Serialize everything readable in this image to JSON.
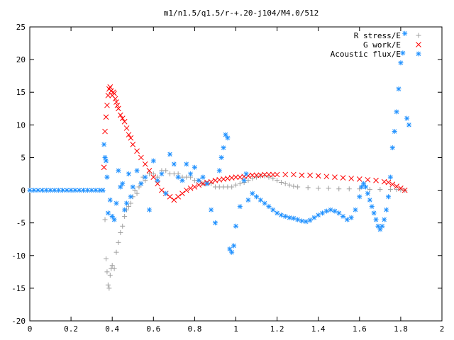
{
  "chart_data": {
    "type": "scatter",
    "title": "m1/n1.5/q1.5/r-+.20-j104/M4.0/512",
    "xlabel": "",
    "ylabel": "",
    "xlim": [
      0,
      2
    ],
    "ylim": [
      -20,
      25
    ],
    "xticks": [
      "0",
      "0.2",
      "0.4",
      "0.6",
      "0.8",
      "1",
      "1.2",
      "1.4",
      "1.6",
      "1.8",
      "2"
    ],
    "yticks": [
      "25",
      "20",
      "15",
      "10",
      "5",
      "0",
      "-5",
      "-10",
      "-15",
      "-20"
    ],
    "grid": false,
    "legend_position": "top-right",
    "series": [
      {
        "name": "R stress/E",
        "color": "#a0a0a0",
        "marker": "plus",
        "points": [
          [
            0.365,
            -4.5
          ],
          [
            0.37,
            -10.5
          ],
          [
            0.375,
            -12.5
          ],
          [
            0.38,
            -14.5
          ],
          [
            0.385,
            -15.0
          ],
          [
            0.39,
            -13.0
          ],
          [
            0.395,
            -12.0
          ],
          [
            0.4,
            -11.5
          ],
          [
            0.41,
            -12.0
          ],
          [
            0.42,
            -9.5
          ],
          [
            0.43,
            -8.0
          ],
          [
            0.44,
            -6.5
          ],
          [
            0.45,
            -5.5
          ],
          [
            0.46,
            -4.0
          ],
          [
            0.47,
            -3.0
          ],
          [
            0.48,
            -2.5
          ],
          [
            0.49,
            -2.0
          ],
          [
            0.5,
            -1.0
          ],
          [
            0.51,
            0.0
          ],
          [
            0.52,
            -0.5
          ],
          [
            0.53,
            0.5
          ],
          [
            0.54,
            1.0
          ],
          [
            0.55,
            2.0
          ],
          [
            0.56,
            1.5
          ],
          [
            0.58,
            2.5
          ],
          [
            0.6,
            2.5
          ],
          [
            0.62,
            2.0
          ],
          [
            0.64,
            3.0
          ],
          [
            0.66,
            3.0
          ],
          [
            0.68,
            2.5
          ],
          [
            0.7,
            2.5
          ],
          [
            0.72,
            2.5
          ],
          [
            0.74,
            2.0
          ],
          [
            0.76,
            2.0
          ],
          [
            0.78,
            2.0
          ],
          [
            0.8,
            1.5
          ],
          [
            0.82,
            1.5
          ],
          [
            0.84,
            1.0
          ],
          [
            0.86,
            1.0
          ],
          [
            0.88,
            1.0
          ],
          [
            0.9,
            0.5
          ],
          [
            0.92,
            0.5
          ],
          [
            0.94,
            0.5
          ],
          [
            0.96,
            0.5
          ],
          [
            0.98,
            0.5
          ],
          [
            1.0,
            0.8
          ],
          [
            1.02,
            1.0
          ],
          [
            1.04,
            1.2
          ],
          [
            1.06,
            1.5
          ],
          [
            1.08,
            1.8
          ],
          [
            1.1,
            2.0
          ],
          [
            1.12,
            2.2
          ],
          [
            1.14,
            2.2
          ],
          [
            1.16,
            2.0
          ],
          [
            1.18,
            1.8
          ],
          [
            1.2,
            1.5
          ],
          [
            1.22,
            1.2
          ],
          [
            1.24,
            1.0
          ],
          [
            1.26,
            0.8
          ],
          [
            1.28,
            0.6
          ],
          [
            1.3,
            0.5
          ],
          [
            1.35,
            0.4
          ],
          [
            1.4,
            0.3
          ],
          [
            1.45,
            0.3
          ],
          [
            1.5,
            0.2
          ],
          [
            1.55,
            0.2
          ],
          [
            1.6,
            0.2
          ],
          [
            1.65,
            0.1
          ],
          [
            1.7,
            0.1
          ],
          [
            1.75,
            0.1
          ],
          [
            1.78,
            0.1
          ],
          [
            1.8,
            0.05
          ],
          [
            1.82,
            0.0
          ]
        ]
      },
      {
        "name": "G work/E",
        "color": "#ff0000",
        "marker": "cross",
        "points": [
          [
            0.36,
            3.5
          ],
          [
            0.365,
            9.0
          ],
          [
            0.37,
            11.2
          ],
          [
            0.375,
            13.0
          ],
          [
            0.38,
            14.5
          ],
          [
            0.385,
            15.5
          ],
          [
            0.39,
            15.8
          ],
          [
            0.395,
            15.2
          ],
          [
            0.4,
            14.5
          ],
          [
            0.405,
            15.0
          ],
          [
            0.41,
            14.8
          ],
          [
            0.415,
            14.0
          ],
          [
            0.42,
            13.5
          ],
          [
            0.425,
            13.0
          ],
          [
            0.43,
            12.5
          ],
          [
            0.44,
            11.5
          ],
          [
            0.45,
            11.0
          ],
          [
            0.46,
            10.5
          ],
          [
            0.47,
            9.5
          ],
          [
            0.48,
            8.5
          ],
          [
            0.49,
            8.0
          ],
          [
            0.5,
            7.0
          ],
          [
            0.52,
            6.0
          ],
          [
            0.54,
            5.0
          ],
          [
            0.56,
            4.0
          ],
          [
            0.58,
            3.0
          ],
          [
            0.6,
            2.0
          ],
          [
            0.62,
            1.0
          ],
          [
            0.64,
            0.0
          ],
          [
            0.66,
            -0.5
          ],
          [
            0.68,
            -1.0
          ],
          [
            0.7,
            -1.5
          ],
          [
            0.72,
            -1.0
          ],
          [
            0.74,
            -0.5
          ],
          [
            0.76,
            0.0
          ],
          [
            0.78,
            0.3
          ],
          [
            0.8,
            0.5
          ],
          [
            0.82,
            0.8
          ],
          [
            0.84,
            1.0
          ],
          [
            0.86,
            1.2
          ],
          [
            0.88,
            1.3
          ],
          [
            0.9,
            1.5
          ],
          [
            0.92,
            1.6
          ],
          [
            0.94,
            1.7
          ],
          [
            0.96,
            1.8
          ],
          [
            0.98,
            1.9
          ],
          [
            1.0,
            2.0
          ],
          [
            1.02,
            2.0
          ],
          [
            1.04,
            2.1
          ],
          [
            1.06,
            2.2
          ],
          [
            1.08,
            2.3
          ],
          [
            1.1,
            2.3
          ],
          [
            1.12,
            2.3
          ],
          [
            1.14,
            2.4
          ],
          [
            1.16,
            2.4
          ],
          [
            1.18,
            2.4
          ],
          [
            1.2,
            2.4
          ],
          [
            1.24,
            2.4
          ],
          [
            1.28,
            2.4
          ],
          [
            1.32,
            2.3
          ],
          [
            1.36,
            2.3
          ],
          [
            1.4,
            2.2
          ],
          [
            1.44,
            2.1
          ],
          [
            1.48,
            2.0
          ],
          [
            1.52,
            1.9
          ],
          [
            1.56,
            1.8
          ],
          [
            1.6,
            1.7
          ],
          [
            1.64,
            1.6
          ],
          [
            1.68,
            1.5
          ],
          [
            1.72,
            1.3
          ],
          [
            1.74,
            1.2
          ],
          [
            1.76,
            0.9
          ],
          [
            1.78,
            0.6
          ],
          [
            1.8,
            0.3
          ],
          [
            1.82,
            0.0
          ]
        ]
      },
      {
        "name": "Acoustic flux/E",
        "color": "#1e90ff",
        "marker": "star",
        "points": [
          [
            0.0,
            0.0
          ],
          [
            0.02,
            0.0
          ],
          [
            0.04,
            0.0
          ],
          [
            0.06,
            0.0
          ],
          [
            0.08,
            0.0
          ],
          [
            0.1,
            0.0
          ],
          [
            0.12,
            0.0
          ],
          [
            0.14,
            0.0
          ],
          [
            0.16,
            0.0
          ],
          [
            0.18,
            0.0
          ],
          [
            0.2,
            0.0
          ],
          [
            0.22,
            0.0
          ],
          [
            0.24,
            0.0
          ],
          [
            0.26,
            0.0
          ],
          [
            0.28,
            0.0
          ],
          [
            0.3,
            0.0
          ],
          [
            0.32,
            0.0
          ],
          [
            0.34,
            0.0
          ],
          [
            0.355,
            0.0
          ],
          [
            0.36,
            7.0
          ],
          [
            0.365,
            5.0
          ],
          [
            0.37,
            4.5
          ],
          [
            0.375,
            2.0
          ],
          [
            0.38,
            -3.5
          ],
          [
            0.39,
            -1.5
          ],
          [
            0.4,
            -4.0
          ],
          [
            0.41,
            -4.5
          ],
          [
            0.42,
            -2.0
          ],
          [
            0.43,
            3.0
          ],
          [
            0.44,
            0.5
          ],
          [
            0.45,
            1.0
          ],
          [
            0.46,
            -3.0
          ],
          [
            0.47,
            -2.0
          ],
          [
            0.48,
            2.5
          ],
          [
            0.49,
            -1.0
          ],
          [
            0.5,
            0.5
          ],
          [
            0.52,
            3.0
          ],
          [
            0.54,
            1.0
          ],
          [
            0.56,
            2.0
          ],
          [
            0.58,
            -3.0
          ],
          [
            0.6,
            4.5
          ],
          [
            0.62,
            1.5
          ],
          [
            0.64,
            2.5
          ],
          [
            0.66,
            -0.5
          ],
          [
            0.68,
            5.5
          ],
          [
            0.7,
            4.0
          ],
          [
            0.72,
            2.0
          ],
          [
            0.74,
            1.5
          ],
          [
            0.76,
            4.0
          ],
          [
            0.78,
            2.5
          ],
          [
            0.8,
            3.5
          ],
          [
            0.82,
            1.5
          ],
          [
            0.84,
            2.0
          ],
          [
            0.86,
            1.0
          ],
          [
            0.88,
            -3.0
          ],
          [
            0.9,
            -5.0
          ],
          [
            0.92,
            3.0
          ],
          [
            0.93,
            5.0
          ],
          [
            0.94,
            6.5
          ],
          [
            0.95,
            8.5
          ],
          [
            0.96,
            8.0
          ],
          [
            0.97,
            -9.0
          ],
          [
            0.98,
            -9.5
          ],
          [
            0.99,
            -8.5
          ],
          [
            1.0,
            -5.5
          ],
          [
            1.02,
            -2.5
          ],
          [
            1.04,
            1.5
          ],
          [
            1.05,
            2.5
          ],
          [
            1.06,
            -1.5
          ],
          [
            1.08,
            -0.5
          ],
          [
            1.1,
            -1.0
          ],
          [
            1.12,
            -1.5
          ],
          [
            1.14,
            -2.0
          ],
          [
            1.16,
            -2.5
          ],
          [
            1.18,
            -3.0
          ],
          [
            1.2,
            -3.5
          ],
          [
            1.22,
            -3.8
          ],
          [
            1.24,
            -4.0
          ],
          [
            1.26,
            -4.2
          ],
          [
            1.28,
            -4.3
          ],
          [
            1.3,
            -4.5
          ],
          [
            1.32,
            -4.7
          ],
          [
            1.34,
            -4.8
          ],
          [
            1.36,
            -4.6
          ],
          [
            1.38,
            -4.2
          ],
          [
            1.4,
            -3.8
          ],
          [
            1.42,
            -3.5
          ],
          [
            1.44,
            -3.2
          ],
          [
            1.46,
            -3.0
          ],
          [
            1.48,
            -3.2
          ],
          [
            1.5,
            -3.5
          ],
          [
            1.52,
            -4.0
          ],
          [
            1.54,
            -4.5
          ],
          [
            1.56,
            -4.2
          ],
          [
            1.58,
            -3.0
          ],
          [
            1.6,
            -1.0
          ],
          [
            1.61,
            0.5
          ],
          [
            1.62,
            1.0
          ],
          [
            1.63,
            0.5
          ],
          [
            1.64,
            -0.5
          ],
          [
            1.65,
            -1.5
          ],
          [
            1.66,
            -2.5
          ],
          [
            1.67,
            -3.5
          ],
          [
            1.68,
            -4.5
          ],
          [
            1.69,
            -5.5
          ],
          [
            1.7,
            -6.0
          ],
          [
            1.71,
            -5.5
          ],
          [
            1.72,
            -4.5
          ],
          [
            1.73,
            -3.0
          ],
          [
            1.74,
            -1.0
          ],
          [
            1.75,
            2.0
          ],
          [
            1.76,
            6.5
          ],
          [
            1.77,
            9.0
          ],
          [
            1.78,
            12.0
          ],
          [
            1.79,
            15.5
          ],
          [
            1.8,
            19.5
          ],
          [
            1.81,
            21.0
          ],
          [
            1.82,
            24.0
          ],
          [
            1.83,
            11.0
          ],
          [
            1.84,
            10.0
          ]
        ]
      }
    ]
  }
}
